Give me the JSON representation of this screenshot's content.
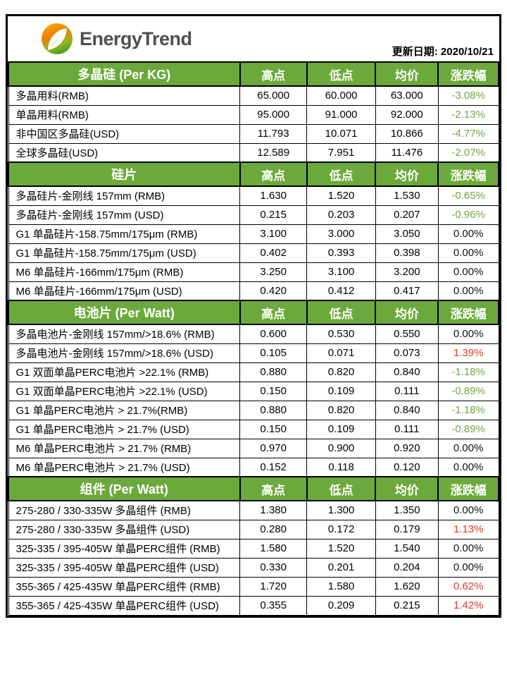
{
  "brand": {
    "name": "EnergyTrend",
    "icon": "leaf-icon"
  },
  "updated_label": "更新日期: 2020/10/21",
  "columns": [
    "高点",
    "低点",
    "均价",
    "涨跌幅"
  ],
  "colors": {
    "header_green": "#6CA93C",
    "down_green": "#73A544",
    "up_red": "#E23A28",
    "flat_black": "#111111"
  },
  "sections": [
    {
      "title": "多晶硅 (Per KG)",
      "rows": [
        {
          "label": "多晶用料(RMB)",
          "high": "65.000",
          "low": "60.000",
          "avg": "63.000",
          "change": "-3.08%",
          "trend": "down"
        },
        {
          "label": "单晶用料(RMB)",
          "high": "95.000",
          "low": "91.000",
          "avg": "92.000",
          "change": "-2.13%",
          "trend": "down"
        },
        {
          "label": "非中国区多晶硅(USD)",
          "high": "11.793",
          "low": "10.071",
          "avg": "10.866",
          "change": "-4.77%",
          "trend": "down"
        },
        {
          "label": "全球多晶硅(USD)",
          "high": "12.589",
          "low": "7.951",
          "avg": "11.476",
          "change": "-2.07%",
          "trend": "down"
        }
      ]
    },
    {
      "title": "硅片",
      "rows": [
        {
          "label": "多晶硅片-金刚线 157mm (RMB)",
          "high": "1.630",
          "low": "1.520",
          "avg": "1.530",
          "change": "-0.65%",
          "trend": "down"
        },
        {
          "label": "多晶硅片-金刚线 157mm (USD)",
          "high": "0.215",
          "low": "0.203",
          "avg": "0.207",
          "change": "-0.96%",
          "trend": "down"
        },
        {
          "label": "G1 单晶硅片-158.75mm/175μm (RMB)",
          "high": "3.100",
          "low": "3.000",
          "avg": "3.050",
          "change": "0.00%",
          "trend": "flat"
        },
        {
          "label": "G1 单晶硅片-158.75mm/175μm (USD)",
          "high": "0.402",
          "low": "0.393",
          "avg": "0.398",
          "change": "0.00%",
          "trend": "flat"
        },
        {
          "label": "M6 单晶硅片-166mm/175μm (RMB)",
          "high": "3.250",
          "low": "3.100",
          "avg": "3.200",
          "change": "0.00%",
          "trend": "flat"
        },
        {
          "label": "M6 单晶硅片-166mm/175μm (USD)",
          "high": "0.420",
          "low": "0.412",
          "avg": "0.417",
          "change": "0.00%",
          "trend": "flat"
        }
      ]
    },
    {
      "title": "电池片 (Per Watt)",
      "rows": [
        {
          "label": "多晶电池片-金刚线 157mm/>18.6% (RMB)",
          "high": "0.600",
          "low": "0.530",
          "avg": "0.550",
          "change": "0.00%",
          "trend": "flat"
        },
        {
          "label": "多晶电池片-金刚线 157mm/>18.6% (USD)",
          "high": "0.105",
          "low": "0.071",
          "avg": "0.073",
          "change": "1.39%",
          "trend": "up"
        },
        {
          "label": "G1 双面单晶PERC电池片  >22.1% (RMB)",
          "high": "0.880",
          "low": "0.820",
          "avg": "0.840",
          "change": "-1.18%",
          "trend": "down"
        },
        {
          "label": "G1 双面单晶PERC电池片  >22.1% (USD)",
          "high": "0.150",
          "low": "0.109",
          "avg": "0.111",
          "change": "-0.89%",
          "trend": "down"
        },
        {
          "label": "G1 单晶PERC电池片   > 21.7%(RMB)",
          "high": "0.880",
          "low": "0.820",
          "avg": "0.840",
          "change": "-1.18%",
          "trend": "down"
        },
        {
          "label": "G1 单晶PERC电池片   > 21.7%  (USD)",
          "high": "0.150",
          "low": "0.109",
          "avg": "0.111",
          "change": "-0.89%",
          "trend": "down"
        },
        {
          "label": "M6 单晶PERC电池片  > 21.7% (RMB)",
          "high": "0.970",
          "low": "0.900",
          "avg": "0.920",
          "change": "0.00%",
          "trend": "flat"
        },
        {
          "label": "M6 单晶PERC电池片  > 21.7% (USD)",
          "high": "0.152",
          "low": "0.118",
          "avg": "0.120",
          "change": "0.00%",
          "trend": "flat"
        }
      ]
    },
    {
      "title": "组件 (Per Watt)",
      "rows": [
        {
          "label": "275-280 / 330-335W 多晶组件 (RMB)",
          "high": "1.380",
          "low": "1.300",
          "avg": "1.350",
          "change": "0.00%",
          "trend": "flat"
        },
        {
          "label": "275-280 / 330-335W 多晶组件 (USD)",
          "high": "0.280",
          "low": "0.172",
          "avg": "0.179",
          "change": "1.13%",
          "trend": "up"
        },
        {
          "label": "325-335 / 395-405W 单晶PERC组件 (RMB)",
          "high": "1.580",
          "low": "1.520",
          "avg": "1.540",
          "change": "0.00%",
          "trend": "flat"
        },
        {
          "label": "325-335 / 395-405W 单晶PERC组件 (USD)",
          "high": "0.330",
          "low": "0.201",
          "avg": "0.204",
          "change": "0.00%",
          "trend": "flat"
        },
        {
          "label": "355-365 / 425-435W 单晶PERC组件 (RMB)",
          "high": "1.720",
          "low": "1.580",
          "avg": "1.620",
          "change": "0.62%",
          "trend": "up"
        },
        {
          "label": "355-365 / 425-435W 单晶PERC组件 (USD)",
          "high": "0.355",
          "low": "0.209",
          "avg": "0.215",
          "change": "1.42%",
          "trend": "up"
        }
      ]
    }
  ]
}
